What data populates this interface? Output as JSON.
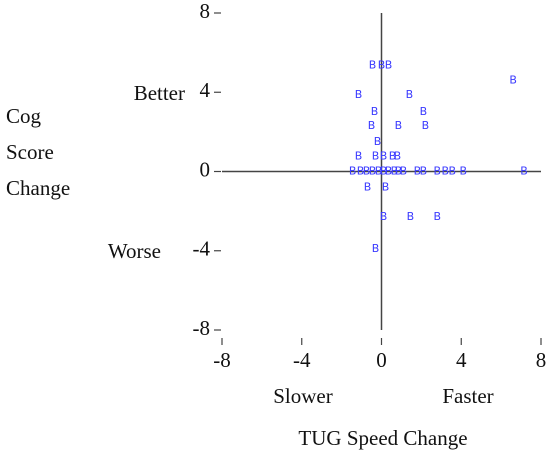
{
  "chart_data": {
    "type": "scatter",
    "x_label": "TUG Speed Change",
    "y_label": "Cog Score Change",
    "annotations": [
      "Better",
      "Worse",
      "Slower",
      "Faster"
    ],
    "marker_label": "B",
    "color": "#3a3aff",
    "x": [
      -0.45,
      0,
      0.35,
      6.6,
      -1.15,
      1.4,
      -0.35,
      2.1,
      -0.5,
      0.85,
      2.2,
      -0.2,
      -1.15,
      -0.3,
      0.1,
      0.55,
      0.8,
      -1.45,
      -1.05,
      -0.75,
      -0.45,
      -0.15,
      0.1,
      0.35,
      0.65,
      0.85,
      1.1,
      1.8,
      2.1,
      2.8,
      3.2,
      3.55,
      4.1,
      7.15,
      -0.7,
      0.2,
      0.1,
      1.45,
      2.8,
      -0.3
    ],
    "y": [
      5.35,
      5.35,
      5.35,
      4.6,
      3.85,
      3.85,
      3.0,
      3.0,
      2.3,
      2.3,
      2.3,
      1.5,
      0.75,
      0.75,
      0.75,
      0.75,
      0.75,
      0,
      0,
      0,
      0,
      0,
      0,
      0,
      0,
      0,
      0,
      0,
      0,
      0,
      0,
      0,
      0,
      0,
      -0.8,
      -0.8,
      -2.3,
      -2.3,
      -2.3,
      -3.9
    ],
    "xlim": [
      -8,
      8
    ],
    "ylim": [
      -8,
      8
    ],
    "xticks": [
      -8,
      -4,
      0,
      4,
      8
    ],
    "yticks": [
      -8,
      -4,
      0,
      4,
      8
    ]
  }
}
